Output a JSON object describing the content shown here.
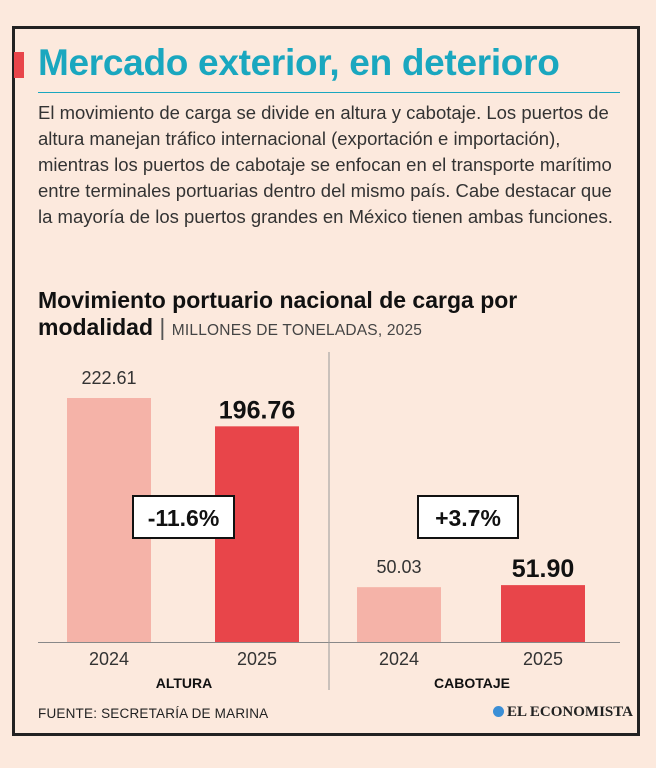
{
  "title": "Mercado exterior, en deterioro",
  "intro": "El movimiento de carga se divide en altura y cabotaje. Los puertos de altura manejan tráfico internacional (exportación e importación), mientras los puertos de cabotaje se enfocan en el transporte marítimo entre terminales portuarias dentro del mismo país. Cabe destacar que la mayoría de los puertos grandes en México tienen ambas funciones.",
  "chart_heading": {
    "main": "Movimiento portuario nacional de carga por modalidad",
    "separator": "|",
    "unit": "MILLONES DE TONELADAS, 2025"
  },
  "chart_data": {
    "type": "bar",
    "title": "Movimiento portuario nacional de carga por modalidad",
    "ylabel": "Millones de toneladas",
    "ylim": [
      0,
      222.61
    ],
    "groups": [
      {
        "name": "ALTURA",
        "change": "-11.6%",
        "bars": [
          {
            "year": "2024",
            "value": 222.61,
            "label": "222.61"
          },
          {
            "year": "2025",
            "value": 196.76,
            "label": "196.76"
          }
        ]
      },
      {
        "name": "CABOTAJE",
        "change": "+3.7%",
        "bars": [
          {
            "year": "2024",
            "value": 50.03,
            "label": "50.03"
          },
          {
            "year": "2025",
            "value": 51.9,
            "label": "51.90"
          }
        ]
      }
    ],
    "colors": {
      "y2024": "#f5b3a8",
      "y2025": "#e8454a"
    }
  },
  "source": "FUENTE: SECRETARÍA DE MARINA",
  "logo": "EL ECONOMISTA"
}
